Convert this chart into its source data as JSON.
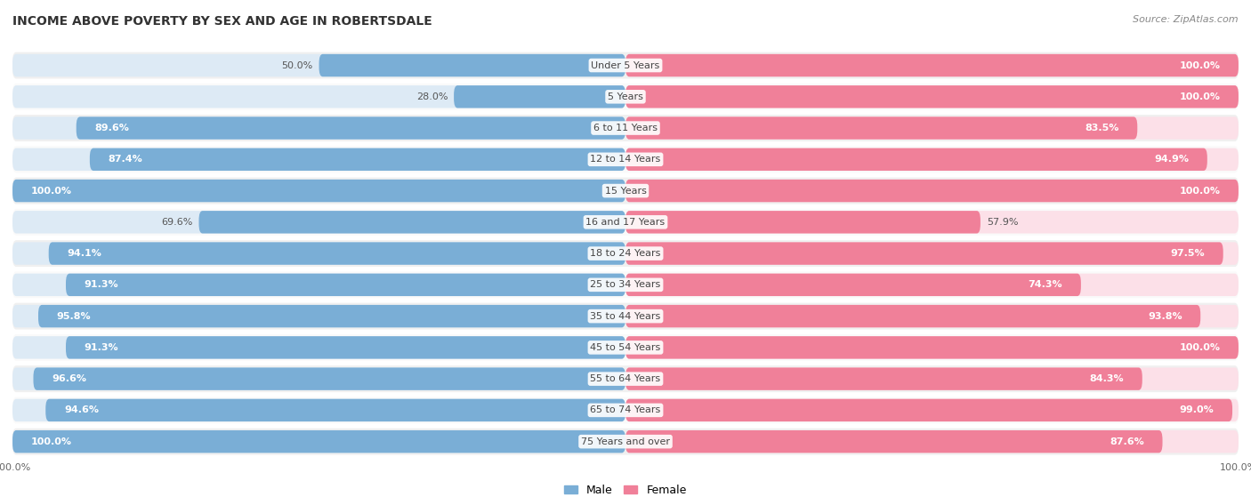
{
  "title": "INCOME ABOVE POVERTY BY SEX AND AGE IN ROBERTSDALE",
  "source": "Source: ZipAtlas.com",
  "categories": [
    "Under 5 Years",
    "5 Years",
    "6 to 11 Years",
    "12 to 14 Years",
    "15 Years",
    "16 and 17 Years",
    "18 to 24 Years",
    "25 to 34 Years",
    "35 to 44 Years",
    "45 to 54 Years",
    "55 to 64 Years",
    "65 to 74 Years",
    "75 Years and over"
  ],
  "male": [
    50.0,
    28.0,
    89.6,
    87.4,
    100.0,
    69.6,
    94.1,
    91.3,
    95.8,
    91.3,
    96.6,
    94.6,
    100.0
  ],
  "female": [
    100.0,
    100.0,
    83.5,
    94.9,
    100.0,
    57.9,
    97.5,
    74.3,
    93.8,
    100.0,
    84.3,
    99.0,
    87.6
  ],
  "male_color": "#7aaed6",
  "female_color": "#f08099",
  "male_label": "Male",
  "female_label": "Female",
  "row_bg_even": "#f0f0f0",
  "row_bg_odd": "#fafafa",
  "title_fontsize": 10,
  "label_fontsize": 8,
  "value_fontsize": 8,
  "tick_fontsize": 8,
  "source_fontsize": 8
}
